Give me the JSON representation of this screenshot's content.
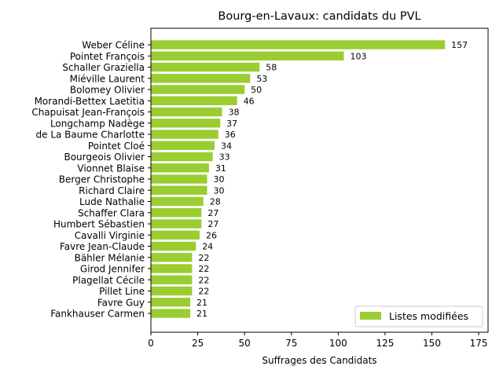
{
  "chart_data": {
    "type": "bar",
    "orientation": "horizontal",
    "title": "Bourg-en-Lavaux: candidats du PVL",
    "xlabel": "Suffrages des Candidats",
    "ylabel": "",
    "xlim": [
      0,
      180
    ],
    "xticks": [
      0,
      25,
      50,
      75,
      100,
      125,
      150,
      175
    ],
    "grid": false,
    "legend_position": "lower-right",
    "bar_color": "#9acd32",
    "categories": [
      "Weber Céline",
      "Pointet François",
      "Schaller Graziella",
      "Miéville Laurent",
      "Bolomey Olivier",
      "Morandi-Bettex Laetitia",
      "Chapuisat Jean-François",
      "Longchamp Nadège",
      "de La Baume Charlotte",
      "Pointet Cloé",
      "Bourgeois Olivier",
      "Vionnet Blaise",
      "Berger Christophe",
      "Richard Claire",
      "Lude Nathalie",
      "Schaffer Clara",
      "Humbert Sébastien",
      "Cavalli Virginie",
      "Favre Jean-Claude",
      "Bähler Mélanie",
      "Girod Jennifer",
      "Plagellat Cécile",
      "Pillet Line",
      "Favre Guy",
      "Fankhauser Carmen"
    ],
    "series": [
      {
        "name": "Listes modifiées",
        "values": [
          157,
          103,
          58,
          53,
          50,
          46,
          38,
          37,
          36,
          34,
          33,
          31,
          30,
          30,
          28,
          27,
          27,
          26,
          24,
          22,
          22,
          22,
          22,
          21,
          21
        ]
      }
    ]
  }
}
